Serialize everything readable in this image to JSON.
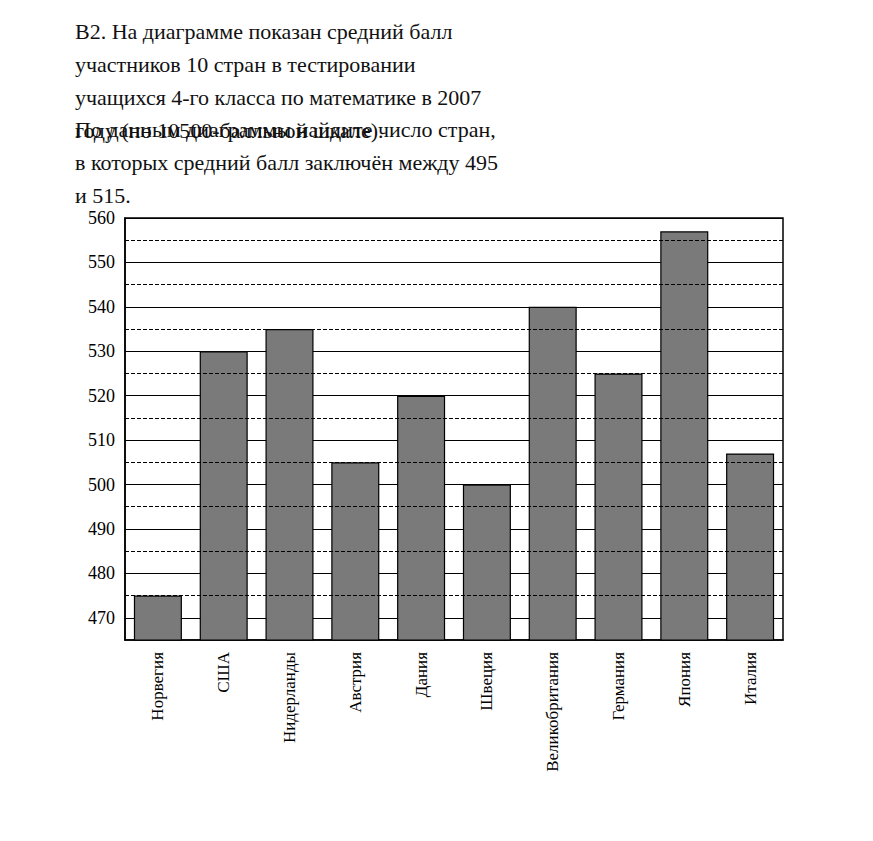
{
  "chart_data": {
    "type": "bar",
    "title": "В2. На диаграмме показан средний балл участников 10 стран в тестировании учащихся 4-го класса по математике в 2007 году (по 10500-балльной шкале).",
    "subtitle": "По данным диаграммы найдите число стран, в которых средний балл заключён между 495 и 515.",
    "categories": [
      "Норвегия",
      "США",
      "Нидерланды",
      "Австрия",
      "Дания",
      "Швеция",
      "Великобритания",
      "Германия",
      "Япония",
      "Италия"
    ],
    "values": [
      475,
      530,
      535,
      505,
      520,
      500,
      540,
      525,
      557,
      507
    ],
    "color": "#7a7a7a",
    "ylim": [
      465,
      560
    ],
    "yticks": [
      470,
      480,
      490,
      500,
      510,
      520,
      530,
      540,
      550,
      560
    ],
    "grid": true
  }
}
